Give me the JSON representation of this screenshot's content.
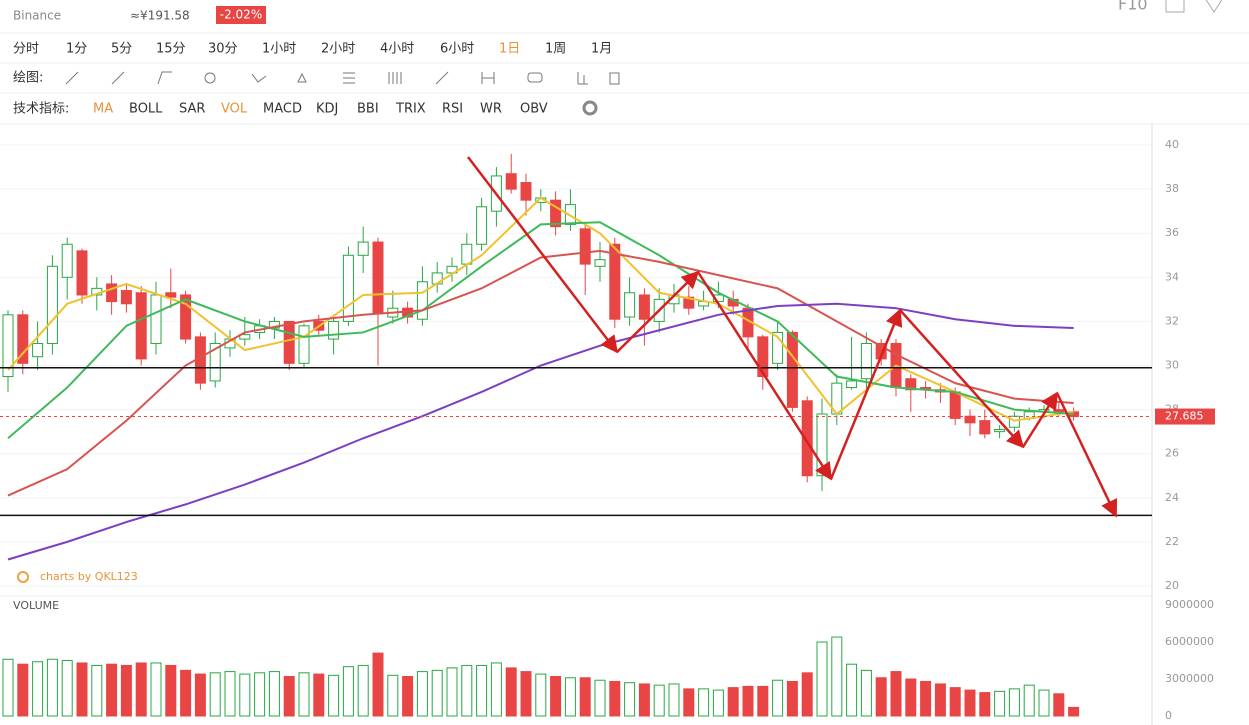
{
  "header": {
    "exchange": "Binance",
    "price_cny": "≈¥191.58",
    "change": "-2.02%",
    "f10": "F10"
  },
  "toolbar": {
    "periods": [
      "分时",
      "1分",
      "5分",
      "15分",
      "30分",
      "1小时",
      "2小时",
      "4小时",
      "6小时",
      "1日",
      "1周",
      "1月"
    ],
    "active_period": 9,
    "draw_label": "绘图:",
    "indicator_label": "技术指标:",
    "indicators": [
      "MA",
      "BOLL",
      "SAR",
      "VOL",
      "MACD",
      "KDJ",
      "BBI",
      "TRIX",
      "RSI",
      "WR",
      "OBV"
    ],
    "highlighted": [
      0,
      3
    ]
  },
  "chart_data": [
    {
      "type": "candlestick",
      "watermark": "charts by QKL123",
      "up_color": "#27a844",
      "down_color": "#e84545",
      "open": [
        29.5,
        32.3,
        30.4,
        31,
        34,
        35.2,
        33.2,
        33.7,
        33.4,
        33.3,
        31,
        33.3,
        33.2,
        31.3,
        29.3,
        30.8,
        31.2,
        31.5,
        31.7,
        32,
        30.1,
        32,
        31.2,
        32,
        35,
        35.6,
        32.2,
        32.6,
        32.1,
        33.7,
        34.2,
        34.6,
        35.5,
        37,
        38.7,
        38.3,
        37.4,
        37.5,
        36.4,
        36.2,
        34.5,
        35.5,
        32.2,
        33.2,
        32,
        32.8,
        33.1,
        32.7,
        32.9,
        33,
        32.6,
        31.3,
        30.1,
        31.5,
        28.4,
        25,
        27.8,
        29,
        29.4,
        31,
        31,
        29.4,
        29,
        28.9,
        28.8,
        27.7,
        27.5,
        27,
        27.2,
        27.6,
        27.9,
        28,
        27.9
      ],
      "high": [
        32.5,
        32.5,
        32,
        35,
        35.8,
        35.3,
        34,
        34.1,
        33.7,
        33.6,
        33.8,
        34.4,
        33.4,
        31.5,
        31.5,
        31.6,
        32.2,
        32.1,
        32.2,
        32,
        31.9,
        32.3,
        32.3,
        35.4,
        36.3,
        35.8,
        33.4,
        32.9,
        34.5,
        34.7,
        34.9,
        36,
        37.6,
        39,
        39.6,
        38.7,
        38,
        37.9,
        38,
        36.4,
        35.6,
        35.8,
        34,
        33.5,
        33.5,
        33.7,
        33.6,
        33.4,
        33.8,
        33.4,
        32.8,
        31.4,
        32,
        31.6,
        28.6,
        28.5,
        29.6,
        31.3,
        31.5,
        31.2,
        31.2,
        29.6,
        29.3,
        29.2,
        29,
        28,
        28,
        27.3,
        27.9,
        28.1,
        28.2,
        28.3,
        28.1
      ],
      "low": [
        28.8,
        29.6,
        29.8,
        30.5,
        33,
        32.8,
        32.5,
        32.3,
        32.4,
        30,
        30.5,
        32.6,
        31,
        28.9,
        29,
        30.4,
        30.9,
        31.2,
        31.2,
        29.8,
        29.9,
        31.4,
        30.5,
        31.8,
        34.2,
        30,
        31.9,
        31.9,
        31.8,
        33.3,
        33.8,
        34.1,
        35.2,
        36.3,
        37.8,
        36.8,
        37,
        35.9,
        36.1,
        33.2,
        33.8,
        31.7,
        31.8,
        30.9,
        31.5,
        32.4,
        32.3,
        32.5,
        32.6,
        32.3,
        30.7,
        28.9,
        29.8,
        27.9,
        24.7,
        24.3,
        27.3,
        28.9,
        28.8,
        30,
        28.6,
        27.9,
        28.5,
        28.3,
        27.3,
        26.8,
        26.7,
        26.7,
        27,
        27.5,
        27.6,
        27.7,
        27.5
      ],
      "close": [
        32.3,
        30.1,
        31,
        34.5,
        35.5,
        33.2,
        33.5,
        32.9,
        32.8,
        30.3,
        33.2,
        33.1,
        31.2,
        29.2,
        31,
        31.2,
        31.4,
        31.8,
        32,
        30.1,
        31.8,
        31.6,
        32,
        35,
        35.6,
        32.4,
        32.6,
        32.2,
        33.8,
        34.2,
        34.5,
        35.5,
        37.2,
        38.6,
        38,
        37.5,
        37.6,
        36.3,
        37.3,
        34.6,
        34.8,
        32.1,
        33.3,
        32.1,
        33,
        33.2,
        32.6,
        32.9,
        33.2,
        32.7,
        31.3,
        29.5,
        31.5,
        28.1,
        25,
        27.8,
        29.2,
        29.3,
        31,
        30.3,
        29,
        28.9,
        28.9,
        28.8,
        27.6,
        27.4,
        26.9,
        27.1,
        27.7,
        27.9,
        28,
        27.9,
        27.685
      ],
      "series": [
        {
          "color": "#f2c12e",
          "x": [
            0,
            4,
            8,
            12,
            16,
            20,
            24,
            28,
            32,
            36,
            40,
            44,
            48,
            52,
            56,
            60,
            64,
            68,
            72
          ],
          "values": [
            29.8,
            32.8,
            33.7,
            32.8,
            30.7,
            31.3,
            33.2,
            33.3,
            35,
            37.6,
            36,
            33.3,
            32.8,
            31.3,
            27.8,
            30,
            28.8,
            27.5,
            27.9
          ]
        },
        {
          "color": "#3dbb5a",
          "x": [
            0,
            4,
            8,
            12,
            16,
            20,
            24,
            28,
            32,
            36,
            40,
            44,
            48,
            52,
            56,
            60,
            64,
            68,
            72
          ],
          "values": [
            26.7,
            29,
            31.8,
            33,
            32,
            31.3,
            31.5,
            32.5,
            34.5,
            36.4,
            36.5,
            35,
            33.3,
            32,
            29.5,
            29,
            28.8,
            28,
            27.8
          ]
        },
        {
          "color": "#d9534f",
          "x": [
            0,
            4,
            8,
            12,
            16,
            20,
            24,
            28,
            32,
            36,
            40,
            44,
            48,
            52,
            56,
            60,
            64,
            68,
            72
          ],
          "values": [
            24.1,
            25.3,
            27.5,
            30,
            31.5,
            32,
            32.3,
            32.5,
            33.5,
            34.9,
            35.2,
            34.7,
            34.1,
            33.5,
            32,
            30.5,
            29.2,
            28.5,
            28.3
          ]
        },
        {
          "color": "#7b3fc4",
          "x": [
            0,
            4,
            8,
            12,
            16,
            20,
            24,
            28,
            32,
            36,
            40,
            44,
            48,
            52,
            56,
            60,
            64,
            68,
            72
          ],
          "values": [
            21.2,
            22,
            22.9,
            23.7,
            24.6,
            25.6,
            26.7,
            27.7,
            28.8,
            30,
            30.9,
            31.6,
            32.3,
            32.7,
            32.8,
            32.6,
            32.1,
            31.8,
            31.7
          ]
        }
      ],
      "hlines": [
        29.9,
        23.2
      ],
      "last_price": 27.685,
      "ylim": [
        19.59,
        40.91
      ],
      "yticks": [
        20,
        22,
        24,
        26,
        28,
        30,
        32,
        34,
        36,
        38,
        40
      ],
      "grid": true
    },
    {
      "type": "volume",
      "title": "VOLUME",
      "values": [
        4600000,
        4200000,
        4400000,
        4600000,
        4500000,
        4300000,
        4100000,
        4200000,
        4100000,
        4300000,
        4300000,
        4100000,
        3700000,
        3400000,
        3500000,
        3600000,
        3400000,
        3500000,
        3600000,
        3200000,
        3500000,
        3400000,
        3300000,
        4000000,
        4100000,
        5100000,
        3300000,
        3200000,
        3600000,
        3700000,
        3900000,
        4100000,
        4100000,
        4300000,
        3900000,
        3600000,
        3400000,
        3200000,
        3100000,
        3100000,
        2900000,
        2800000,
        2700000,
        2600000,
        2500000,
        2600000,
        2200000,
        2200000,
        2100000,
        2300000,
        2400000,
        2400000,
        2900000,
        2800000,
        3500000,
        6000000,
        6400000,
        4200000,
        3700000,
        3100000,
        3600000,
        3000000,
        2800000,
        2600000,
        2300000,
        2100000,
        1900000,
        2000000,
        2200000,
        2500000,
        2100000,
        1800000,
        700000
      ],
      "ylim": [
        0,
        9000000
      ],
      "yticks": [
        0,
        3000000,
        6000000,
        9000000
      ]
    }
  ]
}
